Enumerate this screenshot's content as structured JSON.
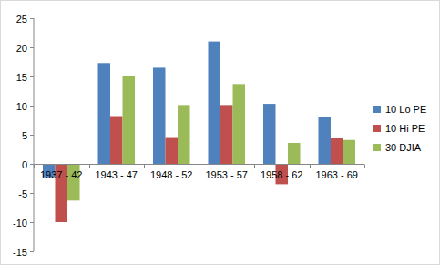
{
  "chart_data": {
    "type": "bar",
    "categories": [
      "1937 - 42",
      "1943 - 47",
      "1948 - 52",
      "1953 - 57",
      "1958 - 62",
      "1963 - 69"
    ],
    "series": [
      {
        "name": "10 Lo PE",
        "color": "#4f81bd",
        "values": [
          -2.3,
          17.3,
          16.5,
          21,
          10.3,
          8
        ]
      },
      {
        "name": "10 Hi PE",
        "color": "#c0504d",
        "values": [
          -10,
          8.2,
          4.6,
          10.1,
          -3.5,
          4.5
        ]
      },
      {
        "name": "30 DJIA",
        "color": "#9bbb59",
        "values": [
          -6.3,
          15,
          10.1,
          13.7,
          3.6,
          4.1
        ]
      }
    ],
    "ylim": [
      -15,
      25
    ],
    "yticks": [
      -15,
      -10,
      -5,
      0,
      5,
      10,
      15,
      20,
      25
    ],
    "grid": false,
    "legend": "right"
  }
}
